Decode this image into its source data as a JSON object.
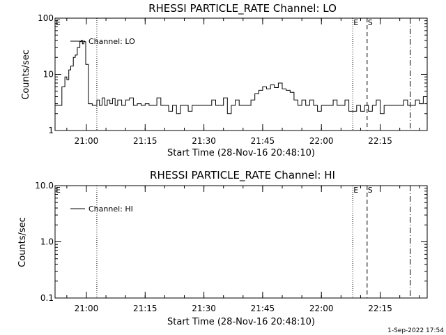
{
  "footer": {
    "timestamp": "1-Sep-2022 17:54"
  },
  "marker_labels": {
    "E": "E",
    "S": "S"
  },
  "chart_data": [
    {
      "type": "line",
      "title": "RHESSI PARTICLE_RATE Channel: LO",
      "xlabel": "Start Time (28-Nov-16 20:48:10)",
      "ylabel": "Counts/sec",
      "yscale": "log",
      "ylim": [
        1,
        100
      ],
      "ytick_labels": [
        "1",
        "10",
        "100"
      ],
      "xlim": [
        "20:52:00",
        "22:27:00"
      ],
      "xtick_labels": [
        "21:00",
        "21:15",
        "21:30",
        "21:45",
        "22:00",
        "22:15"
      ],
      "legend": "top-left",
      "series": [
        {
          "name": "Channel: LO",
          "color": "#000000",
          "x": [
            "20:52:00",
            "20:53:00",
            "20:53:45",
            "20:54:30",
            "20:55:00",
            "20:55:30",
            "20:56:00",
            "20:56:40",
            "20:57:10",
            "20:57:40",
            "20:58:20",
            "20:58:40",
            "20:59:00",
            "20:59:20",
            "20:59:50",
            "21:00:30",
            "21:01:30",
            "21:02:00",
            "21:02:40",
            "21:03:20",
            "21:04:00",
            "21:04:40",
            "21:05:20",
            "21:06:00",
            "21:06:40",
            "21:07:20",
            "21:08:00",
            "21:09:00",
            "21:10:00",
            "21:11:00",
            "21:12:00",
            "21:13:00",
            "21:14:00",
            "21:15:00",
            "21:16:00",
            "21:17:00",
            "21:18:00",
            "21:19:00",
            "21:20:00",
            "21:21:00",
            "21:22:00",
            "21:23:00",
            "21:24:00",
            "21:25:00",
            "21:26:00",
            "21:27:00",
            "21:28:00",
            "21:29:00",
            "21:30:00",
            "21:31:00",
            "21:32:00",
            "21:33:00",
            "21:34:00",
            "21:35:00",
            "21:36:00",
            "21:37:00",
            "21:38:00",
            "21:39:00",
            "21:40:00",
            "21:41:00",
            "21:42:00",
            "21:43:00",
            "21:44:00",
            "21:45:00",
            "21:46:00",
            "21:47:00",
            "21:48:00",
            "21:49:00",
            "21:50:00",
            "21:51:00",
            "21:52:00",
            "21:53:00",
            "21:54:00",
            "21:55:00",
            "21:56:00",
            "21:57:00",
            "21:58:00",
            "21:59:00",
            "22:00:00",
            "22:01:00",
            "22:02:00",
            "22:03:00",
            "22:04:00",
            "22:05:00",
            "22:06:00",
            "22:07:00",
            "22:08:00",
            "22:09:00",
            "22:10:00",
            "22:11:00",
            "22:12:00",
            "22:13:00",
            "22:14:00",
            "22:15:00",
            "22:16:00",
            "22:17:00",
            "22:18:00",
            "22:19:00",
            "22:20:00",
            "22:21:00",
            "22:22:00",
            "22:23:00",
            "22:24:00",
            "22:25:00",
            "22:26:00",
            "22:27:00"
          ],
          "y": [
            2.8,
            2.8,
            6,
            9,
            8,
            12,
            14,
            20,
            22,
            30,
            38,
            40,
            35,
            38,
            15,
            3,
            2.8,
            2.8,
            3.5,
            2.8,
            3.8,
            2.8,
            3.5,
            3,
            3.7,
            2.8,
            3.5,
            2.8,
            3.5,
            3.8,
            2.8,
            3,
            2.8,
            3,
            2.8,
            2.8,
            3.8,
            2.8,
            2.8,
            2.2,
            2.8,
            2,
            2.8,
            2.8,
            2.2,
            2.8,
            2.8,
            2.8,
            2.8,
            2.8,
            3.5,
            2.8,
            2.8,
            3.8,
            2,
            2.8,
            3.5,
            2.8,
            2.8,
            2.8,
            3.5,
            4.5,
            5.2,
            6,
            5.5,
            6.5,
            5.8,
            7,
            5.5,
            5.2,
            4.8,
            3.5,
            2.8,
            3.5,
            2.8,
            3.5,
            2.8,
            2.2,
            2.8,
            2.8,
            2.8,
            3.5,
            2.8,
            2.8,
            3.5,
            2.2,
            2.2,
            2.8,
            2.2,
            2.8,
            2.2,
            2.8,
            3.5,
            2,
            2.8,
            2.8,
            2.8,
            2.8,
            2.8,
            3.5,
            2.8,
            2.8,
            3.5,
            3,
            4,
            4
          ]
        }
      ]
    },
    {
      "type": "line",
      "title": "RHESSI PARTICLE_RATE Channel: HI",
      "xlabel": "Start Time (28-Nov-16 20:48:10)",
      "ylabel": "Counts/sec",
      "yscale": "log",
      "ylim": [
        0.1,
        10
      ],
      "ytick_labels": [
        "0.1",
        "1.0",
        "10.0"
      ],
      "xlim": [
        "20:52:00",
        "22:27:00"
      ],
      "xtick_labels": [
        "21:00",
        "21:15",
        "21:30",
        "21:45",
        "22:00",
        "22:15"
      ],
      "legend": "top-left",
      "series": [
        {
          "name": "Channel: HI",
          "color": "#000000",
          "x": [],
          "y": []
        }
      ]
    }
  ],
  "vertical_markers": [
    {
      "time": "21:02:40",
      "style": "dotted"
    },
    {
      "time": "22:08:00",
      "style": "dotted",
      "label": "E"
    },
    {
      "time": "22:11:40",
      "style": "dashed",
      "label": "S"
    },
    {
      "time": "22:22:40",
      "style": "dashdot"
    }
  ]
}
